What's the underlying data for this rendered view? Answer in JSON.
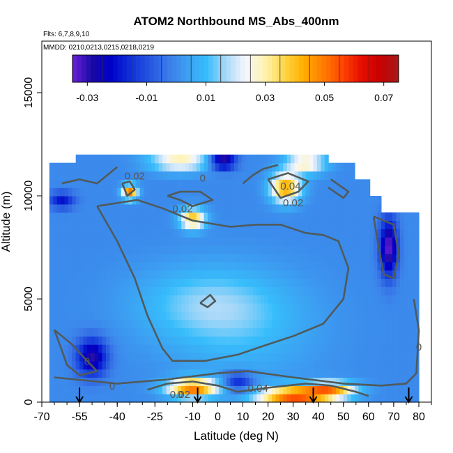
{
  "chart_data": {
    "type": "heatmap",
    "title": "ATOM2 Northbound MS_Abs_400nm",
    "flights_label": "Flts: 6,7,8,9,10",
    "dates_label": "MMDD: 0210,0213,0215,0218,0219",
    "xlabel": "Latitude (deg N)",
    "ylabel": "Altitude (m)",
    "xlim": [
      -70,
      85
    ],
    "ylim": [
      0,
      17500
    ],
    "x_ticks": [
      -70,
      -55,
      -40,
      -25,
      -10,
      0,
      10,
      20,
      30,
      40,
      50,
      60,
      70,
      80
    ],
    "y_ticks": [
      0,
      5000,
      10000,
      15000
    ],
    "colorbar": {
      "min": -0.035,
      "max": 0.075,
      "ticks": [
        -0.03,
        -0.01,
        0.01,
        0.03,
        0.05,
        0.07
      ],
      "colors": [
        "#6a1fd8",
        "#1a0aa5",
        "#0000c8",
        "#1030d8",
        "#2555e0",
        "#3b7be8",
        "#3ca0f2",
        "#37bdfb",
        "#a8d8f8",
        "#f4f6ff",
        "#fff3b0",
        "#ffd84a",
        "#ffb000",
        "#ff8000",
        "#ff4a00",
        "#e81000",
        "#c80000",
        "#a51a1a"
      ]
    },
    "contour_labels": [
      "0.02",
      "0",
      "0.02",
      "0.04",
      "0.02",
      "0",
      "0",
      "0",
      "0.02",
      "0.04",
      "0"
    ],
    "flight_markers_lat": [
      -55,
      -8,
      38,
      76
    ],
    "contour_levels": [
      0,
      0.02,
      0.04
    ]
  }
}
